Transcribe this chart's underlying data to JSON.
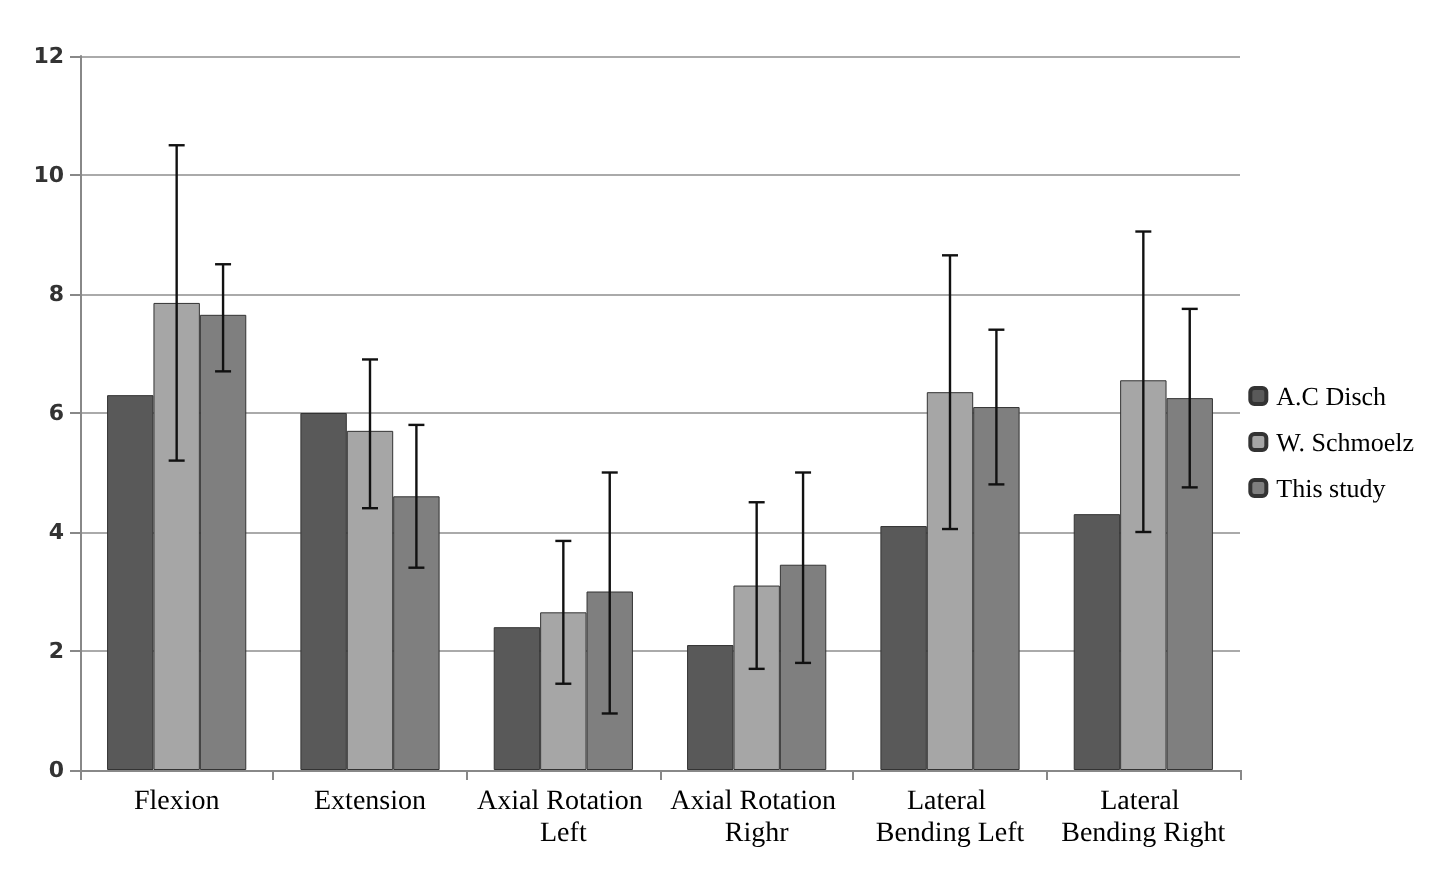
{
  "chart_data": {
    "type": "bar",
    "categories": [
      "Flexion",
      "Extension",
      "Axial Rotation Left",
      "Axial Rotation Righr",
      "Lateral Bending Left",
      "Lateral Bending Right"
    ],
    "series": [
      {
        "name": "A.C Disch",
        "color": "#595959",
        "values": [
          6.3,
          6.0,
          2.4,
          2.1,
          4.1,
          4.3
        ]
      },
      {
        "name": "W. Schmoelz",
        "color": "#a6a6a6",
        "values": [
          7.85,
          5.7,
          2.65,
          3.1,
          6.35,
          6.55
        ],
        "errors": [
          [
            5.2,
            10.5
          ],
          [
            4.4,
            6.9
          ],
          [
            1.45,
            3.85
          ],
          [
            1.7,
            4.5
          ],
          [
            4.05,
            8.65
          ],
          [
            4.0,
            9.05
          ]
        ]
      },
      {
        "name": "This study",
        "color": "#7f7f7f",
        "values": [
          7.65,
          4.6,
          3.0,
          3.45,
          6.1,
          6.25
        ],
        "errors": [
          [
            6.7,
            8.5
          ],
          [
            3.4,
            5.8
          ],
          [
            0.95,
            5.0
          ],
          [
            1.8,
            5.0
          ],
          [
            4.8,
            7.4
          ],
          [
            4.75,
            7.75
          ]
        ]
      }
    ],
    "ylim": [
      0,
      12
    ],
    "yticks": [
      0,
      2,
      4,
      6,
      8,
      10,
      12
    ],
    "grid": "y",
    "legend": "right"
  }
}
